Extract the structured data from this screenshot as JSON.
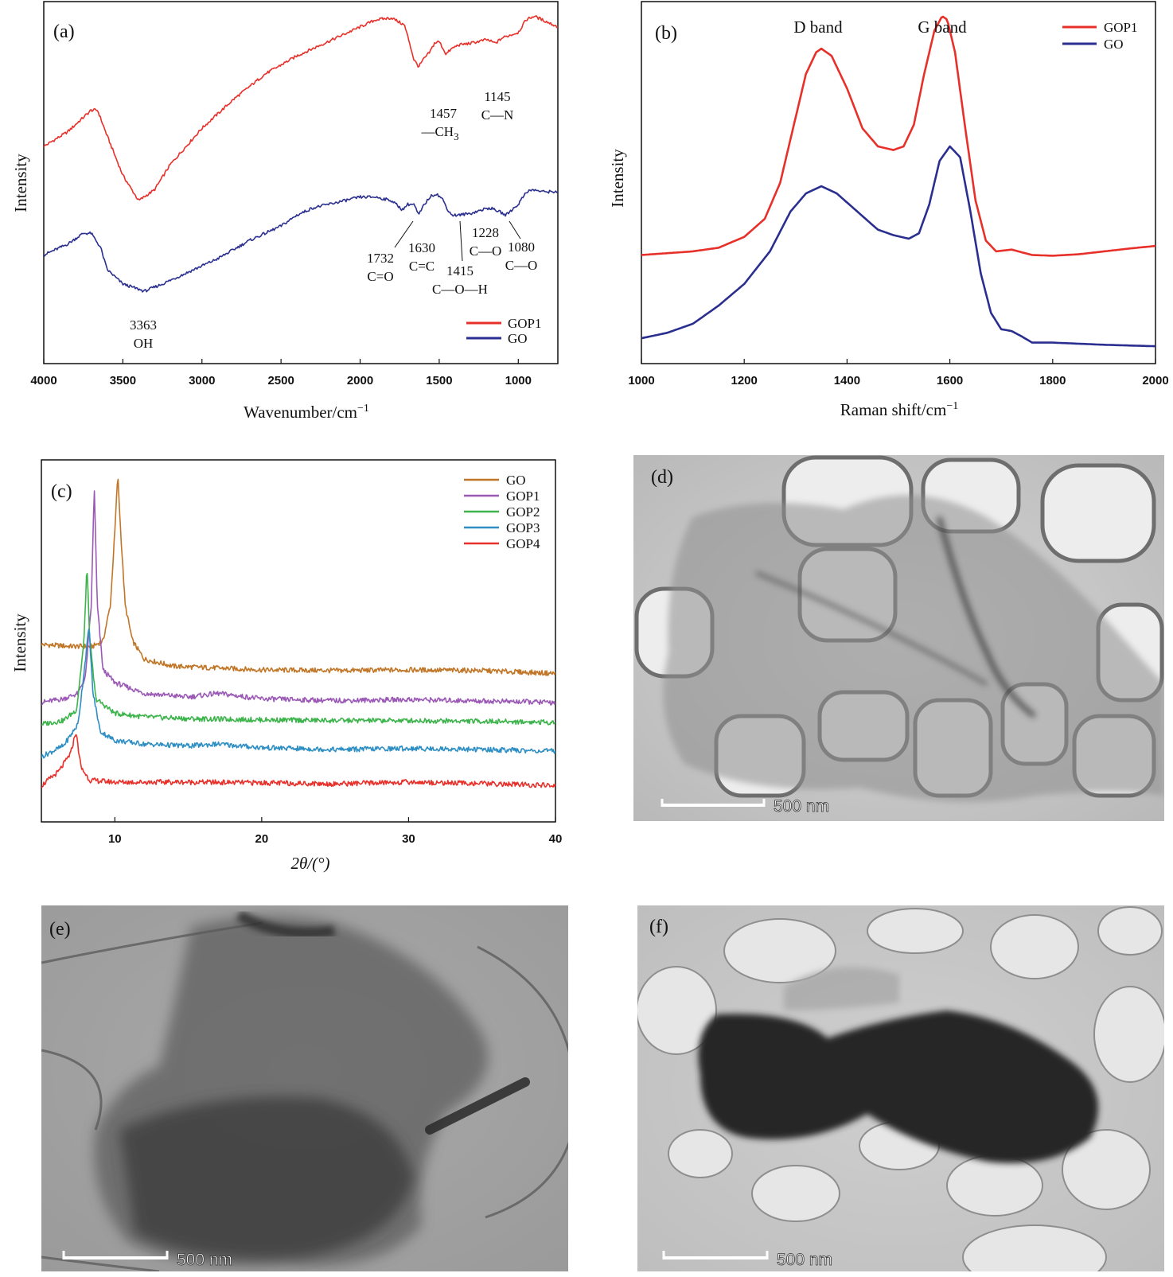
{
  "chart_data": [
    {
      "id": "a",
      "type": "line",
      "panel_label": "(a)",
      "xlabel": "Wavenumber/cm",
      "xlabel_sup": "−1",
      "ylabel": "Intensity",
      "xlim": [
        4000,
        750
      ],
      "x_ticks": [
        4000,
        3500,
        3000,
        2500,
        2000,
        1500,
        1000
      ],
      "x_tick_labels": [
        "4000",
        "3500",
        "3000",
        "2500",
        "2000",
        "1500",
        "1000"
      ],
      "legend_position": "bottom-right",
      "series": [
        {
          "name": "GOP1",
          "color": "#e8302a",
          "points": [
            [
              4000,
              0.6
            ],
            [
              3850,
              0.64
            ],
            [
              3700,
              0.7
            ],
            [
              3660,
              0.7
            ],
            [
              3600,
              0.63
            ],
            [
              3500,
              0.52
            ],
            [
              3400,
              0.45
            ],
            [
              3300,
              0.48
            ],
            [
              3200,
              0.55
            ],
            [
              3000,
              0.65
            ],
            [
              2800,
              0.73
            ],
            [
              2600,
              0.8
            ],
            [
              2400,
              0.85
            ],
            [
              2200,
              0.89
            ],
            [
              2100,
              0.91
            ],
            [
              2000,
              0.93
            ],
            [
              1900,
              0.95
            ],
            [
              1800,
              0.955
            ],
            [
              1720,
              0.935
            ],
            [
              1690,
              0.89
            ],
            [
              1660,
              0.84
            ],
            [
              1630,
              0.82
            ],
            [
              1600,
              0.84
            ],
            [
              1560,
              0.86
            ],
            [
              1530,
              0.885
            ],
            [
              1500,
              0.89
            ],
            [
              1457,
              0.855
            ],
            [
              1420,
              0.87
            ],
            [
              1380,
              0.88
            ],
            [
              1300,
              0.885
            ],
            [
              1250,
              0.89
            ],
            [
              1200,
              0.895
            ],
            [
              1145,
              0.885
            ],
            [
              1100,
              0.9
            ],
            [
              1000,
              0.915
            ],
            [
              950,
              0.95
            ],
            [
              900,
              0.96
            ],
            [
              850,
              0.95
            ],
            [
              750,
              0.93
            ]
          ]
        },
        {
          "name": "GO",
          "color": "#2a2f8f",
          "points": [
            [
              4000,
              0.3
            ],
            [
              3850,
              0.33
            ],
            [
              3750,
              0.36
            ],
            [
              3700,
              0.36
            ],
            [
              3640,
              0.32
            ],
            [
              3600,
              0.26
            ],
            [
              3500,
              0.22
            ],
            [
              3363,
              0.2
            ],
            [
              3250,
              0.22
            ],
            [
              3100,
              0.25
            ],
            [
              2900,
              0.29
            ],
            [
              2700,
              0.34
            ],
            [
              2500,
              0.38
            ],
            [
              2400,
              0.41
            ],
            [
              2300,
              0.43
            ],
            [
              2200,
              0.44
            ],
            [
              2000,
              0.46
            ],
            [
              1900,
              0.46
            ],
            [
              1800,
              0.45
            ],
            [
              1732,
              0.425
            ],
            [
              1700,
              0.44
            ],
            [
              1660,
              0.44
            ],
            [
              1630,
              0.41
            ],
            [
              1600,
              0.435
            ],
            [
              1560,
              0.46
            ],
            [
              1520,
              0.47
            ],
            [
              1480,
              0.455
            ],
            [
              1440,
              0.42
            ],
            [
              1415,
              0.41
            ],
            [
              1380,
              0.41
            ],
            [
              1300,
              0.415
            ],
            [
              1228,
              0.425
            ],
            [
              1180,
              0.43
            ],
            [
              1120,
              0.42
            ],
            [
              1080,
              0.41
            ],
            [
              1040,
              0.425
            ],
            [
              1000,
              0.44
            ],
            [
              950,
              0.475
            ],
            [
              900,
              0.48
            ],
            [
              850,
              0.475
            ],
            [
              750,
              0.475
            ]
          ]
        }
      ],
      "annotations": [
        {
          "lines": [
            "1457",
            "—CH",
            "3"
          ],
          "x": 1457
        },
        {
          "lines": [
            "1145",
            "C—N"
          ],
          "x": 1145
        },
        {
          "lines": [
            "1732",
            "C=O"
          ],
          "x": 1732
        },
        {
          "lines": [
            "1630",
            "C=C"
          ],
          "x": 1630
        },
        {
          "lines": [
            "1415",
            "C—O—H"
          ],
          "x": 1415
        },
        {
          "lines": [
            "1228",
            "C—O"
          ],
          "x": 1228
        },
        {
          "lines": [
            "1080",
            "C—O"
          ],
          "x": 1080
        },
        {
          "lines": [
            "3363",
            "OH"
          ],
          "x": 3363
        }
      ]
    },
    {
      "id": "b",
      "type": "line",
      "panel_label": "(b)",
      "xlabel": "Raman shift/cm",
      "xlabel_sup": "−1",
      "ylabel": "Intensity",
      "xlim": [
        1000,
        2000
      ],
      "x_ticks": [
        1000,
        1200,
        1400,
        1600,
        1800,
        2000
      ],
      "x_tick_labels": [
        "1000",
        "1200",
        "1400",
        "1600",
        "1800",
        "2000"
      ],
      "legend_position": "top-right",
      "top_labels": [
        {
          "text": "D band",
          "x": 1350
        },
        {
          "text": "G band",
          "x": 1590
        }
      ],
      "series": [
        {
          "name": "GOP1",
          "color": "#e8302a",
          "points": [
            [
              1000,
              0.3
            ],
            [
              1100,
              0.31
            ],
            [
              1150,
              0.32
            ],
            [
              1200,
              0.35
            ],
            [
              1240,
              0.4
            ],
            [
              1270,
              0.5
            ],
            [
              1300,
              0.68
            ],
            [
              1320,
              0.8
            ],
            [
              1340,
              0.86
            ],
            [
              1350,
              0.87
            ],
            [
              1370,
              0.85
            ],
            [
              1400,
              0.76
            ],
            [
              1430,
              0.65
            ],
            [
              1460,
              0.6
            ],
            [
              1490,
              0.59
            ],
            [
              1510,
              0.6
            ],
            [
              1530,
              0.66
            ],
            [
              1550,
              0.8
            ],
            [
              1570,
              0.92
            ],
            [
              1585,
              0.96
            ],
            [
              1595,
              0.95
            ],
            [
              1610,
              0.86
            ],
            [
              1630,
              0.65
            ],
            [
              1650,
              0.45
            ],
            [
              1670,
              0.34
            ],
            [
              1690,
              0.31
            ],
            [
              1720,
              0.315
            ],
            [
              1760,
              0.3
            ],
            [
              1800,
              0.298
            ],
            [
              1850,
              0.302
            ],
            [
              1900,
              0.31
            ],
            [
              1950,
              0.318
            ],
            [
              2000,
              0.325
            ]
          ]
        },
        {
          "name": "GO",
          "color": "#2a2f8f",
          "points": [
            [
              1000,
              0.07
            ],
            [
              1050,
              0.085
            ],
            [
              1100,
              0.11
            ],
            [
              1150,
              0.16
            ],
            [
              1200,
              0.22
            ],
            [
              1250,
              0.31
            ],
            [
              1290,
              0.42
            ],
            [
              1320,
              0.47
            ],
            [
              1350,
              0.49
            ],
            [
              1380,
              0.47
            ],
            [
              1420,
              0.42
            ],
            [
              1460,
              0.37
            ],
            [
              1490,
              0.355
            ],
            [
              1520,
              0.345
            ],
            [
              1540,
              0.36
            ],
            [
              1560,
              0.44
            ],
            [
              1580,
              0.56
            ],
            [
              1600,
              0.6
            ],
            [
              1620,
              0.57
            ],
            [
              1640,
              0.42
            ],
            [
              1660,
              0.25
            ],
            [
              1680,
              0.14
            ],
            [
              1700,
              0.095
            ],
            [
              1720,
              0.09
            ],
            [
              1740,
              0.075
            ],
            [
              1760,
              0.058
            ],
            [
              1800,
              0.058
            ],
            [
              1850,
              0.055
            ],
            [
              1900,
              0.052
            ],
            [
              1950,
              0.05
            ],
            [
              2000,
              0.048
            ]
          ]
        }
      ]
    },
    {
      "id": "c",
      "type": "line",
      "panel_label": "(c)",
      "xlabel": "2θ/(°)",
      "ylabel": "Intensity",
      "xlim": [
        5,
        40
      ],
      "x_ticks": [
        10,
        20,
        30,
        40
      ],
      "x_tick_labels": [
        "10",
        "20",
        "30",
        "40"
      ],
      "legend_position": "top-right",
      "series": [
        {
          "name": "GO",
          "color": "#c07626",
          "points": [
            [
              5,
              0.49
            ],
            [
              7,
              0.485
            ],
            [
              8.5,
              0.485
            ],
            [
              9.2,
              0.5
            ],
            [
              9.7,
              0.6
            ],
            [
              10.0,
              0.8
            ],
            [
              10.2,
              0.96
            ],
            [
              10.4,
              0.8
            ],
            [
              10.7,
              0.6
            ],
            [
              11.2,
              0.5
            ],
            [
              12,
              0.45
            ],
            [
              14,
              0.43
            ],
            [
              17,
              0.425
            ],
            [
              20,
              0.42
            ],
            [
              25,
              0.418
            ],
            [
              30,
              0.42
            ],
            [
              35,
              0.418
            ],
            [
              40,
              0.41
            ]
          ]
        },
        {
          "name": "GOP1",
          "color": "#9b59b6",
          "points": [
            [
              5,
              0.33
            ],
            [
              6.5,
              0.34
            ],
            [
              7.5,
              0.355
            ],
            [
              8.0,
              0.4
            ],
            [
              8.4,
              0.6
            ],
            [
              8.6,
              0.93
            ],
            [
              8.8,
              0.6
            ],
            [
              9.2,
              0.42
            ],
            [
              10,
              0.385
            ],
            [
              12,
              0.355
            ],
            [
              15,
              0.345
            ],
            [
              17,
              0.355
            ],
            [
              20,
              0.34
            ],
            [
              25,
              0.335
            ],
            [
              30,
              0.338
            ],
            [
              35,
              0.334
            ],
            [
              40,
              0.33
            ]
          ]
        },
        {
          "name": "GOP2",
          "color": "#3cb44b",
          "points": [
            [
              5,
              0.27
            ],
            [
              6.5,
              0.28
            ],
            [
              7.4,
              0.31
            ],
            [
              7.9,
              0.5
            ],
            [
              8.1,
              0.71
            ],
            [
              8.3,
              0.5
            ],
            [
              8.7,
              0.34
            ],
            [
              10,
              0.3
            ],
            [
              12,
              0.29
            ],
            [
              15,
              0.285
            ],
            [
              20,
              0.282
            ],
            [
              25,
              0.28
            ],
            [
              30,
              0.28
            ],
            [
              35,
              0.278
            ],
            [
              40,
              0.275
            ]
          ]
        },
        {
          "name": "GOP3",
          "color": "#2d8ec4",
          "points": [
            [
              5,
              0.18
            ],
            [
              6.5,
              0.21
            ],
            [
              7.5,
              0.27
            ],
            [
              8.0,
              0.45
            ],
            [
              8.25,
              0.54
            ],
            [
              8.5,
              0.36
            ],
            [
              9.0,
              0.25
            ],
            [
              10,
              0.225
            ],
            [
              12,
              0.215
            ],
            [
              15,
              0.21
            ],
            [
              17,
              0.215
            ],
            [
              20,
              0.205
            ],
            [
              25,
              0.2
            ],
            [
              30,
              0.203
            ],
            [
              35,
              0.2
            ],
            [
              40,
              0.195
            ]
          ]
        },
        {
          "name": "GOP4",
          "color": "#e8302a",
          "points": [
            [
              5,
              0.1
            ],
            [
              6.2,
              0.14
            ],
            [
              7.0,
              0.19
            ],
            [
              7.35,
              0.25
            ],
            [
              7.7,
              0.15
            ],
            [
              8.3,
              0.115
            ],
            [
              10,
              0.11
            ],
            [
              15,
              0.11
            ],
            [
              20,
              0.108
            ],
            [
              25,
              0.105
            ],
            [
              30,
              0.11
            ],
            [
              35,
              0.106
            ],
            [
              40,
              0.1
            ]
          ]
        }
      ]
    }
  ],
  "tem_images": [
    {
      "id": "d",
      "label": "(d)",
      "scale_text": "500 nm"
    },
    {
      "id": "e",
      "label": "(e)",
      "scale_text": "500 nm"
    },
    {
      "id": "f",
      "label": "(f)",
      "scale_text": "500 nm"
    }
  ]
}
